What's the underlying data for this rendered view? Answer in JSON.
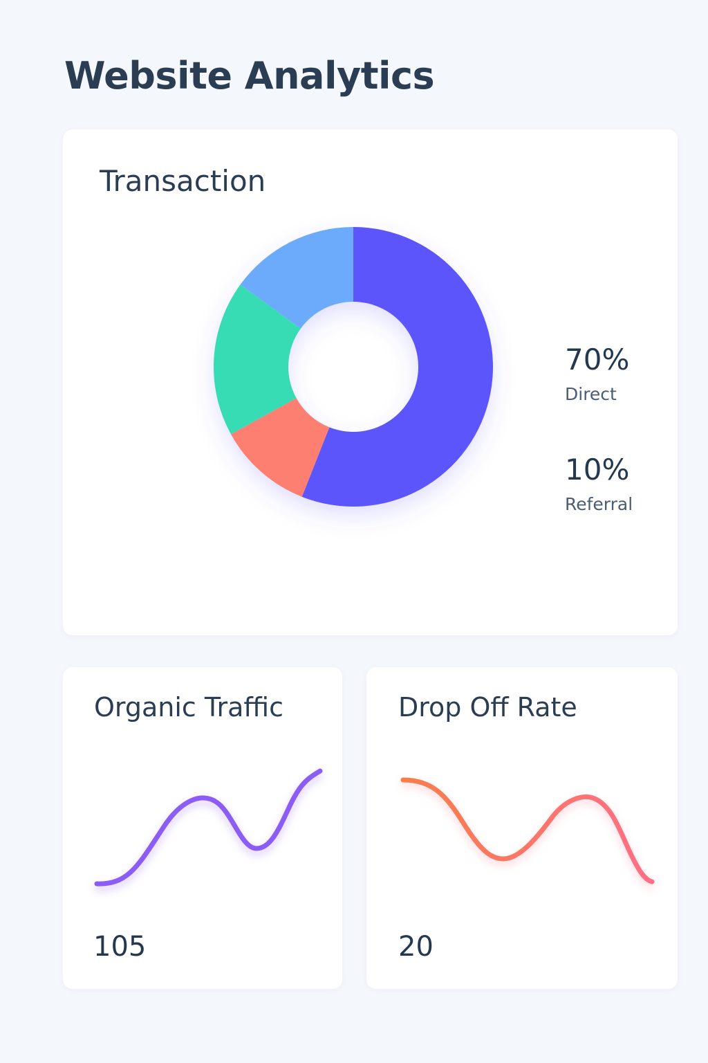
{
  "page": {
    "title": "Website Analytics"
  },
  "transaction": {
    "title": "Transaction",
    "stats": [
      {
        "value": "70%",
        "label": "Direct"
      },
      {
        "value": "10%",
        "label": "Referral"
      }
    ]
  },
  "organic_traffic": {
    "title": "Organic Traffic",
    "value": "105",
    "line_color": "#8b5cf6"
  },
  "drop_off_rate": {
    "title": "Drop Off Rate",
    "value": "20",
    "line_color_start": "#f97d4a",
    "line_color_end": "#ff6f86"
  },
  "chart_data": {
    "type": "pie",
    "variant": "donut",
    "segments": [
      {
        "value": 56,
        "color": "#5b55fb"
      },
      {
        "value": 11,
        "color": "#fd7f72"
      },
      {
        "value": 18,
        "color": "#38dcb4"
      },
      {
        "value": 15,
        "color": "#6cabfb"
      }
    ]
  }
}
